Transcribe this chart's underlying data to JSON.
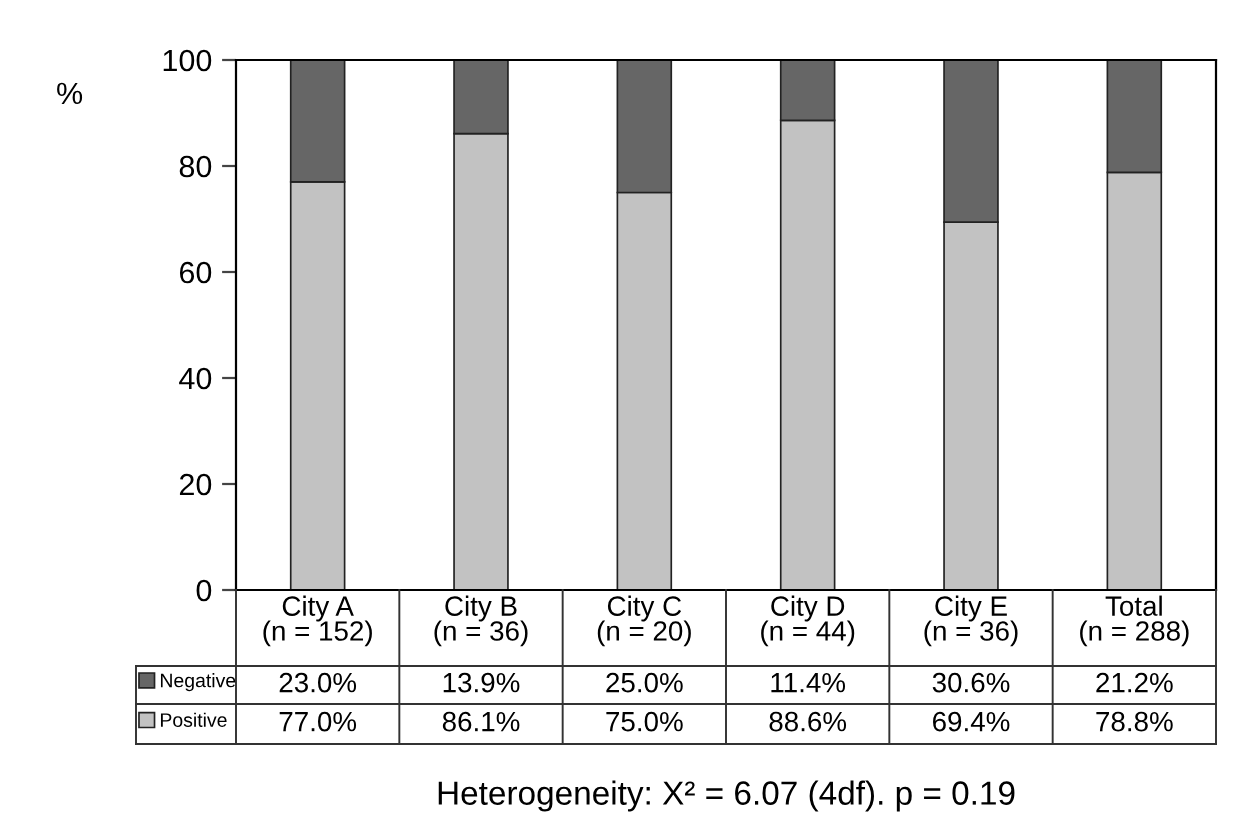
{
  "chart_data": {
    "type": "bar",
    "stacked": true,
    "ylabel": "%",
    "categories": [
      "City A\n(n = 152)",
      "City B\n(n = 36)",
      "City C\n(n = 20)",
      "City D\n(n = 44)",
      "City E\n(n = 36)",
      "Total\n(n = 288)"
    ],
    "series": [
      {
        "name": "Positive",
        "color": "#c2c2c2",
        "values": [
          77.0,
          86.1,
          75.0,
          88.6,
          69.4,
          78.8
        ],
        "value_labels": [
          "77.0%",
          "86.1%",
          "75.0%",
          "88.6%",
          "69.4%",
          "78.8%"
        ]
      },
      {
        "name": "Negative",
        "color": "#666666",
        "values": [
          23.0,
          13.9,
          25.0,
          11.4,
          30.6,
          21.2
        ],
        "value_labels": [
          "23.0%",
          "13.9%",
          "25.0%",
          "11.4%",
          "30.6%",
          "21.2%"
        ]
      }
    ],
    "ylim": [
      0,
      100
    ],
    "yticks": [
      0,
      20,
      40,
      60,
      80,
      100
    ],
    "grid": false,
    "legend": "bottom",
    "annotations": [
      "Heterogeneity: X² = 6.07 (4df). p = 0.19"
    ]
  }
}
